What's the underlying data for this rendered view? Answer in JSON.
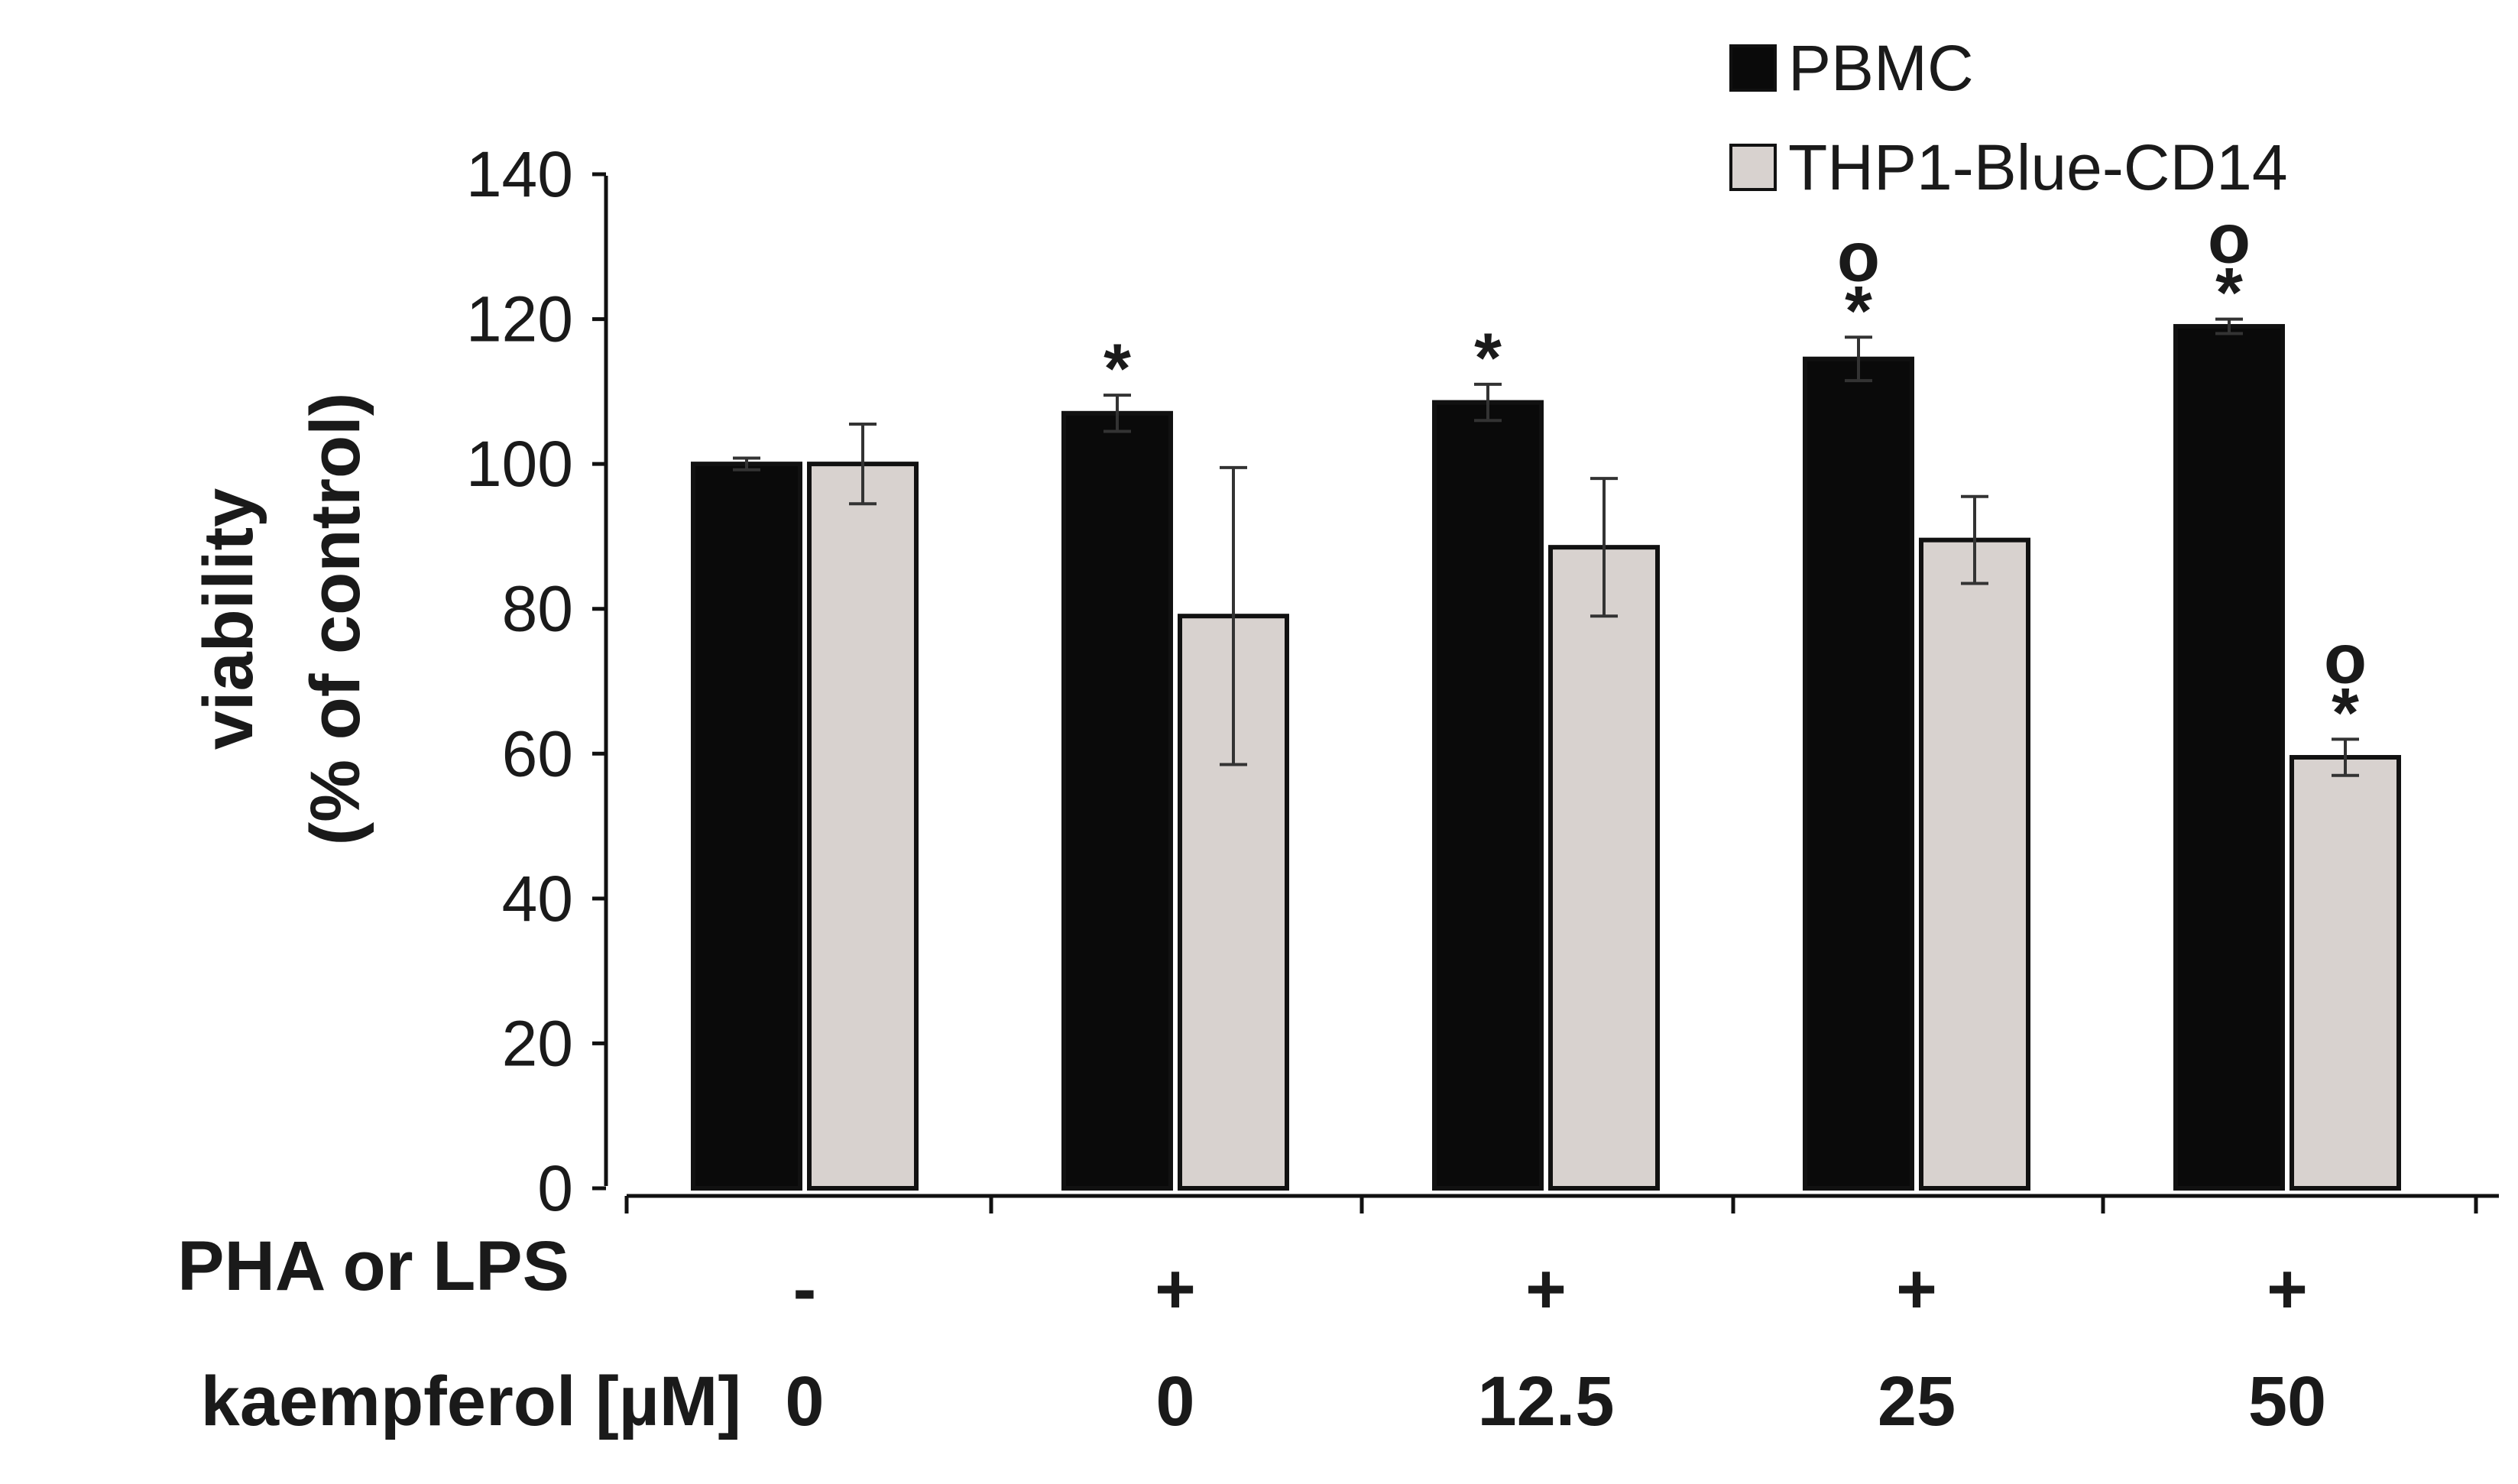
{
  "chart_data": {
    "type": "bar",
    "ylabel_line1": "viability",
    "ylabel_line2": "(% of  control)",
    "ylim": [
      0,
      140
    ],
    "yticks": [
      "0",
      "20",
      "40",
      "60",
      "80",
      "100",
      "120",
      "140"
    ],
    "row_labels": {
      "treatment": "PHA or LPS",
      "kaempferol": "kaempferol [µM]"
    },
    "groups": [
      {
        "treatment": "-",
        "kaempferol": "0"
      },
      {
        "treatment": "+",
        "kaempferol": "0"
      },
      {
        "treatment": "+",
        "kaempferol": "12.5"
      },
      {
        "treatment": "+",
        "kaempferol": "25"
      },
      {
        "treatment": "+",
        "kaempferol": "50"
      }
    ],
    "series": [
      {
        "name": "PBMC",
        "color": "#0a0a0a",
        "values": [
          100,
          107,
          108.5,
          114.5,
          119
        ],
        "errors": [
          0.8,
          2.5,
          2.5,
          3,
          1
        ],
        "marks": [
          [],
          [
            "*"
          ],
          [
            "*"
          ],
          [
            "*",
            "o"
          ],
          [
            "*",
            "o"
          ]
        ]
      },
      {
        "name": "THP1-Blue-CD14",
        "color": "#d8d2cf",
        "values": [
          100,
          79,
          88.5,
          89.5,
          59.5
        ],
        "errors": [
          5.5,
          20.5,
          9.5,
          6,
          2.5
        ],
        "marks": [
          [],
          [],
          [],
          [],
          [
            "*",
            "o"
          ]
        ]
      }
    ],
    "legend": {
      "position": "top-right",
      "entries": [
        "PBMC",
        "THP1-Blue-CD14"
      ]
    }
  }
}
